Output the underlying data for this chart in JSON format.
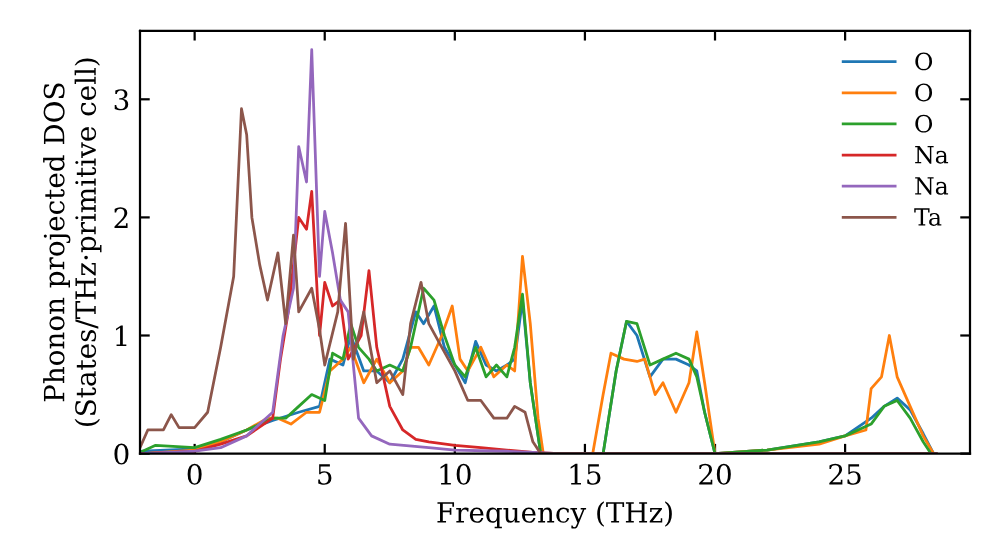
{
  "chart_data": {
    "type": "line",
    "xlabel": "Frequency (THz)",
    "ylabel": "Phonon projected DOS\n(States/THz·primitive cell)",
    "xlim": [
      -2.1,
      29.8
    ],
    "ylim": [
      0,
      3.58
    ],
    "xticks": [
      0,
      5,
      10,
      15,
      20,
      25
    ],
    "yticks": [
      0,
      1,
      2,
      3
    ],
    "grid": false,
    "legend": "top right",
    "marker": "none",
    "line_style": "solid",
    "series": [
      {
        "name": "O",
        "color": "#1f77b4",
        "x": [
          -2,
          0,
          1,
          2,
          3,
          4,
          4.8,
          5.2,
          5.7,
          6,
          6.5,
          7,
          7.5,
          8,
          8.5,
          8.8,
          9.2,
          9.6,
          10,
          10.4,
          10.8,
          11.2,
          11.6,
          12,
          12.3,
          12.6,
          12.9,
          13.3,
          15.7,
          16.2,
          16.6,
          17,
          17.5,
          18,
          18.5,
          19,
          19.3,
          19.6,
          20,
          22,
          24,
          25,
          26,
          26.5,
          27,
          27.5,
          28,
          28.4
        ],
        "values": [
          0.02,
          0.04,
          0.1,
          0.2,
          0.28,
          0.35,
          0.4,
          0.8,
          0.75,
          1.0,
          0.7,
          0.7,
          0.6,
          0.8,
          1.2,
          1.1,
          1.25,
          0.9,
          0.75,
          0.6,
          0.95,
          0.75,
          0.7,
          0.75,
          0.8,
          1.3,
          0.6,
          0,
          0,
          0.7,
          1.12,
          1.0,
          0.65,
          0.8,
          0.8,
          0.75,
          0.7,
          0.35,
          0,
          0.03,
          0.1,
          0.15,
          0.3,
          0.4,
          0.47,
          0.37,
          0.17,
          0
        ]
      },
      {
        "name": "O",
        "color": "#ff7f0e",
        "x": [
          -2,
          0,
          1,
          2,
          2.8,
          3.2,
          3.7,
          4.3,
          4.8,
          5.2,
          5.7,
          6,
          6.5,
          7,
          7.5,
          8,
          8.3,
          8.6,
          9,
          9.5,
          9.9,
          10.2,
          10.5,
          11,
          11.5,
          12,
          12.3,
          12.6,
          12.9,
          13.2,
          13.4,
          15.3,
          15.7,
          16,
          16.5,
          17,
          17.3,
          17.7,
          18,
          18.5,
          19,
          19.3,
          19.6,
          20,
          22,
          24,
          25,
          25.8,
          26,
          26.4,
          26.7,
          27,
          27.5,
          28,
          28.4
        ],
        "values": [
          0,
          0.03,
          0.1,
          0.2,
          0.3,
          0.3,
          0.25,
          0.35,
          0.35,
          0.7,
          0.8,
          0.9,
          0.6,
          0.8,
          0.6,
          0.7,
          0.9,
          0.9,
          0.75,
          1.0,
          1.25,
          0.8,
          0.7,
          0.9,
          0.65,
          0.75,
          0.7,
          1.67,
          1.1,
          0.3,
          0,
          0,
          0.5,
          0.85,
          0.8,
          0.78,
          0.8,
          0.5,
          0.6,
          0.35,
          0.6,
          1.03,
          0.6,
          0,
          0.03,
          0.08,
          0.15,
          0.2,
          0.55,
          0.65,
          1.0,
          0.65,
          0.4,
          0.15,
          0
        ]
      },
      {
        "name": "O",
        "color": "#2ca02c",
        "x": [
          -2,
          -1.5,
          0,
          1,
          2,
          3,
          3.5,
          4,
          4.5,
          5,
          5.3,
          5.7,
          6,
          6.3,
          6.7,
          7,
          7.5,
          8,
          8.3,
          8.8,
          9.2,
          9.6,
          10,
          10.4,
          10.8,
          11.2,
          11.6,
          12,
          12.3,
          12.6,
          12.9,
          13.3,
          15.7,
          16.2,
          16.6,
          17,
          17.5,
          18,
          18.5,
          19,
          19.3,
          19.6,
          20,
          22,
          24,
          25,
          26,
          26.5,
          27,
          27.5,
          28,
          28.3
        ],
        "values": [
          0.02,
          0.07,
          0.05,
          0.12,
          0.2,
          0.3,
          0.3,
          0.4,
          0.5,
          0.45,
          0.85,
          0.8,
          1.1,
          0.9,
          0.8,
          0.7,
          0.75,
          0.7,
          0.9,
          1.4,
          1.3,
          1.0,
          0.75,
          0.65,
          0.9,
          0.65,
          0.75,
          0.65,
          0.9,
          1.35,
          0.6,
          0,
          0,
          0.7,
          1.12,
          1.1,
          0.75,
          0.8,
          0.85,
          0.8,
          0.65,
          0.35,
          0,
          0.03,
          0.1,
          0.15,
          0.25,
          0.4,
          0.45,
          0.3,
          0.1,
          0
        ]
      },
      {
        "name": "Na",
        "color": "#d62728",
        "x": [
          -2,
          0,
          1,
          2,
          3,
          3.3,
          3.6,
          4,
          4.3,
          4.5,
          4.8,
          5,
          5.3,
          5.6,
          5.9,
          6.4,
          6.7,
          7,
          7.5,
          8,
          8.5,
          9,
          10,
          11,
          12,
          13,
          14,
          28.5
        ],
        "values": [
          0,
          0.02,
          0.08,
          0.15,
          0.3,
          0.8,
          1.2,
          2.0,
          1.9,
          2.22,
          1.0,
          1.45,
          1.25,
          1.3,
          0.8,
          1.0,
          1.55,
          0.9,
          0.4,
          0.2,
          0.12,
          0.1,
          0.07,
          0.05,
          0.03,
          0.01,
          0,
          0
        ]
      },
      {
        "name": "Na",
        "color": "#9467bd",
        "x": [
          -2,
          0,
          1,
          2,
          3,
          3.4,
          3.8,
          4,
          4.3,
          4.5,
          4.8,
          5,
          5.3,
          5.6,
          5.9,
          6.3,
          6.8,
          7.5,
          9,
          10,
          12,
          13,
          14,
          28.5
        ],
        "values": [
          0,
          0.02,
          0.05,
          0.15,
          0.35,
          1.0,
          1.4,
          2.6,
          2.3,
          3.42,
          1.5,
          2.05,
          1.7,
          1.3,
          1.2,
          0.3,
          0.15,
          0.08,
          0.05,
          0.03,
          0.02,
          0.01,
          0,
          0
        ]
      },
      {
        "name": "Ta",
        "color": "#8c564b",
        "x": [
          -2.1,
          -1.8,
          -1.2,
          -0.9,
          -0.6,
          0,
          0.5,
          1,
          1.5,
          1.8,
          2,
          2.2,
          2.5,
          2.8,
          3.2,
          3.5,
          3.8,
          4,
          4.5,
          4.8,
          5,
          5.5,
          5.8,
          6.1,
          6.5,
          7,
          7.5,
          8,
          8.3,
          8.7,
          9,
          9.5,
          10,
          10.5,
          11,
          11.5,
          12,
          12.3,
          12.7,
          13,
          13.3,
          28.5
        ],
        "values": [
          0.05,
          0.2,
          0.2,
          0.33,
          0.22,
          0.22,
          0.35,
          0.9,
          1.5,
          2.92,
          2.7,
          2.0,
          1.6,
          1.3,
          1.7,
          1.1,
          1.85,
          1.2,
          1.4,
          1.05,
          0.75,
          1.2,
          1.95,
          0.8,
          1.2,
          0.6,
          0.7,
          0.5,
          1.1,
          1.45,
          1.1,
          0.9,
          0.7,
          0.45,
          0.45,
          0.3,
          0.3,
          0.4,
          0.35,
          0.1,
          0,
          0
        ]
      }
    ]
  }
}
